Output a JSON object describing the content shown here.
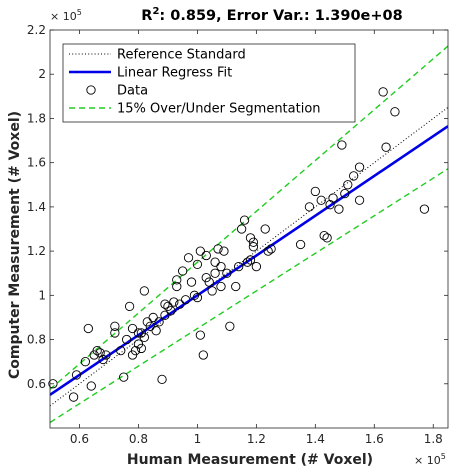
{
  "chart_data": {
    "type": "scatter",
    "title_prefix": "R",
    "title_sup": "2",
    "title_rest": ": 0.859, Error Var.: 1.390e+08",
    "xlabel": "Human Measurement (# Voxel)",
    "ylabel": "Computer Measurement (# Voxel)",
    "x_exponent_base": "× 10",
    "x_exponent_power": "5",
    "y_exponent_base": "× 10",
    "y_exponent_power": "5",
    "x_scale": 100000,
    "y_scale": 100000,
    "xlim": [
      0.5,
      1.85
    ],
    "ylim": [
      0.4,
      2.2
    ],
    "xticks": [
      0.6,
      0.8,
      1.0,
      1.2,
      1.4,
      1.6,
      1.8
    ],
    "xtick_labels": [
      "0.6",
      "0.8",
      "1",
      "1.2",
      "1.4",
      "1.6",
      "1.8"
    ],
    "yticks": [
      0.6,
      0.8,
      1.0,
      1.2,
      1.4,
      1.6,
      1.8,
      2.0,
      2.2
    ],
    "ytick_labels": [
      "0.6",
      "0.8",
      "1",
      "1.2",
      "1.4",
      "1.6",
      "1.8",
      "2",
      "2.2"
    ],
    "grid": false,
    "legend_position": "top-left",
    "legend": [
      {
        "label": "Reference Standard",
        "style": "dotted",
        "color": "#000000"
      },
      {
        "label": "Linear Regress Fit",
        "style": "solid",
        "color": "#0000e6"
      },
      {
        "label": "Data",
        "style": "circle",
        "color": "#000000"
      },
      {
        "label": "15% Over/Under Segmentation",
        "style": "dashed",
        "color": "#22cc22"
      }
    ],
    "reference_line": {
      "slope": 1.0,
      "intercept": 0
    },
    "fit_line": {
      "slope": 0.9,
      "intercept": 0.1
    },
    "over_line": {
      "slope": 1.15,
      "intercept": 0
    },
    "under_line": {
      "slope": 0.85,
      "intercept": 0
    },
    "points": [
      [
        0.51,
        0.6
      ],
      [
        0.58,
        0.54
      ],
      [
        0.59,
        0.64
      ],
      [
        0.62,
        0.7
      ],
      [
        0.63,
        0.85
      ],
      [
        0.64,
        0.59
      ],
      [
        0.65,
        0.73
      ],
      [
        0.66,
        0.75
      ],
      [
        0.67,
        0.74
      ],
      [
        0.68,
        0.71
      ],
      [
        0.69,
        0.73
      ],
      [
        0.72,
        0.86
      ],
      [
        0.72,
        0.83
      ],
      [
        0.74,
        0.75
      ],
      [
        0.75,
        0.63
      ],
      [
        0.76,
        0.8
      ],
      [
        0.77,
        0.95
      ],
      [
        0.78,
        0.85
      ],
      [
        0.78,
        0.73
      ],
      [
        0.79,
        0.75
      ],
      [
        0.8,
        0.78
      ],
      [
        0.8,
        0.83
      ],
      [
        0.81,
        0.76
      ],
      [
        0.81,
        0.83
      ],
      [
        0.82,
        1.02
      ],
      [
        0.82,
        0.81
      ],
      [
        0.83,
        0.88
      ],
      [
        0.84,
        0.86
      ],
      [
        0.85,
        0.9
      ],
      [
        0.86,
        0.84
      ],
      [
        0.87,
        0.88
      ],
      [
        0.88,
        0.62
      ],
      [
        0.89,
        0.96
      ],
      [
        0.89,
        0.91
      ],
      [
        0.9,
        0.95
      ],
      [
        0.91,
        0.93
      ],
      [
        0.92,
        0.97
      ],
      [
        0.93,
        1.07
      ],
      [
        0.93,
        1.04
      ],
      [
        0.94,
        0.96
      ],
      [
        0.95,
        1.11
      ],
      [
        0.96,
        0.98
      ],
      [
        0.97,
        1.17
      ],
      [
        0.98,
        1.06
      ],
      [
        0.99,
        1.0
      ],
      [
        1.0,
        0.99
      ],
      [
        1.0,
        1.14
      ],
      [
        1.01,
        1.2
      ],
      [
        1.01,
        0.82
      ],
      [
        1.02,
        0.73
      ],
      [
        1.03,
        1.08
      ],
      [
        1.03,
        1.18
      ],
      [
        1.04,
        1.06
      ],
      [
        1.05,
        1.02
      ],
      [
        1.06,
        1.1
      ],
      [
        1.06,
        1.15
      ],
      [
        1.07,
        1.21
      ],
      [
        1.08,
        1.13
      ],
      [
        1.08,
        1.04
      ],
      [
        1.09,
        1.2
      ],
      [
        1.1,
        1.1
      ],
      [
        1.11,
        0.86
      ],
      [
        1.13,
        1.04
      ],
      [
        1.14,
        1.13
      ],
      [
        1.15,
        1.3
      ],
      [
        1.16,
        1.34
      ],
      [
        1.17,
        1.15
      ],
      [
        1.18,
        1.16
      ],
      [
        1.18,
        1.26
      ],
      [
        1.19,
        1.24
      ],
      [
        1.19,
        1.22
      ],
      [
        1.2,
        1.13
      ],
      [
        1.23,
        1.3
      ],
      [
        1.24,
        1.2
      ],
      [
        1.25,
        1.21
      ],
      [
        1.35,
        1.23
      ],
      [
        1.38,
        1.4
      ],
      [
        1.4,
        1.47
      ],
      [
        1.42,
        1.43
      ],
      [
        1.43,
        1.27
      ],
      [
        1.44,
        1.26
      ],
      [
        1.45,
        1.41
      ],
      [
        1.46,
        1.44
      ],
      [
        1.48,
        1.39
      ],
      [
        1.49,
        1.68
      ],
      [
        1.5,
        1.46
      ],
      [
        1.51,
        1.5
      ],
      [
        1.53,
        1.54
      ],
      [
        1.55,
        1.58
      ],
      [
        1.55,
        1.43
      ],
      [
        1.63,
        1.92
      ],
      [
        1.64,
        1.67
      ],
      [
        1.67,
        1.83
      ],
      [
        1.77,
        1.39
      ]
    ]
  },
  "colors": {
    "fit": "#0000e6",
    "band": "#22cc22",
    "reference": "#000000",
    "marker": "#000000",
    "axes": "#262626"
  }
}
